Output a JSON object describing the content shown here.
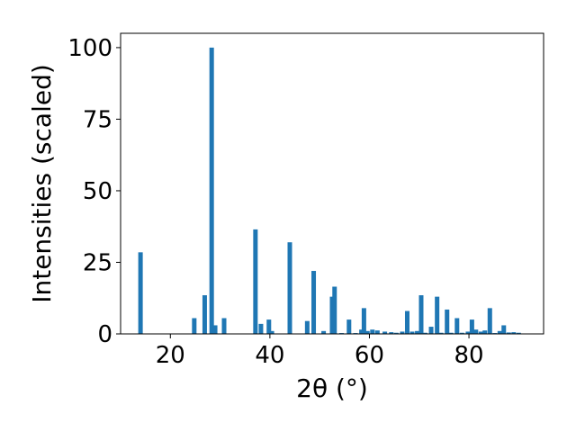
{
  "chart_data": {
    "type": "bar",
    "title": "",
    "xlabel": "2θ (°)",
    "ylabel": "Intensities (scaled)",
    "xlim": [
      10,
      95
    ],
    "ylim": [
      0,
      105
    ],
    "xticks": [
      20,
      40,
      60,
      80
    ],
    "yticks": [
      0,
      25,
      50,
      75,
      100
    ],
    "xtick_labels": [
      "20",
      "40",
      "60",
      "80"
    ],
    "ytick_labels": [
      "0",
      "25",
      "50",
      "75",
      "100"
    ],
    "grid": false,
    "bar_color": "#1f77b4",
    "x": [
      14.0,
      24.8,
      26.9,
      28.3,
      29.0,
      30.8,
      37.1,
      38.2,
      39.8,
      40.4,
      44.0,
      47.5,
      48.8,
      50.8,
      52.5,
      53.0,
      54.4,
      55.9,
      57.2,
      58.4,
      58.9,
      59.6,
      60.6,
      61.6,
      63.1,
      64.4,
      65.4,
      66.6,
      67.6,
      68.6,
      69.6,
      70.4,
      71.2,
      72.4,
      73.6,
      74.4,
      75.6,
      76.4,
      77.6,
      78.6,
      79.8,
      80.6,
      81.4,
      82.4,
      83.2,
      84.2,
      85.2,
      86.2,
      87.0,
      88.0,
      89.0,
      90.0
    ],
    "values": [
      28.5,
      5.5,
      13.5,
      100,
      3.0,
      5.5,
      36.5,
      3.5,
      5.0,
      1.0,
      32.0,
      4.5,
      22.0,
      1.0,
      13.0,
      16.5,
      0.3,
      5.0,
      0.3,
      1.5,
      9.0,
      1.0,
      1.5,
      1.2,
      0.8,
      0.6,
      0.4,
      0.8,
      8.0,
      0.8,
      1.0,
      13.5,
      0.4,
      2.5,
      13.0,
      0.4,
      8.5,
      0.4,
      5.5,
      0.4,
      0.8,
      5.0,
      1.5,
      0.8,
      1.2,
      9.0,
      0.3,
      1.0,
      3.0,
      0.5,
      0.6,
      0.4
    ]
  }
}
